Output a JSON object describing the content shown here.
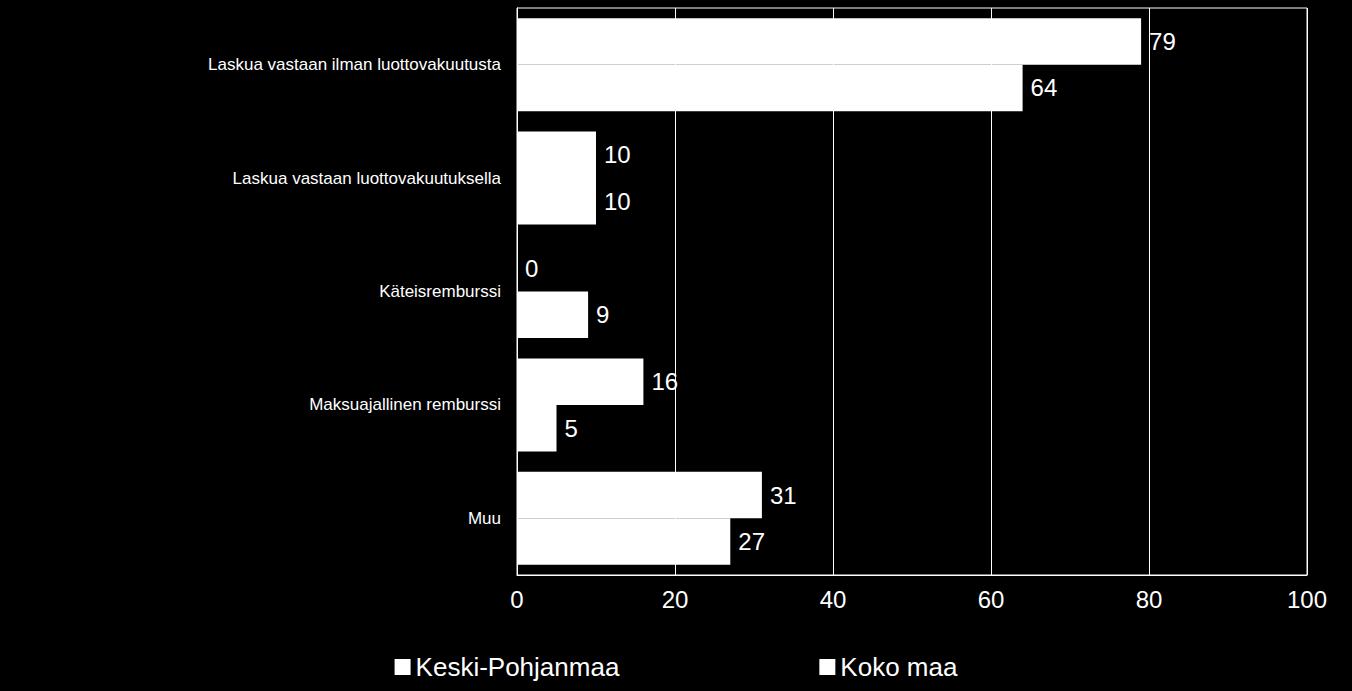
{
  "chart_data": {
    "type": "bar",
    "orientation": "horizontal",
    "categories": [
      "Laskua vastaan ilman luottovakuutusta",
      "Laskua vastaan luottovakuutuksella",
      "Käteisremburssi",
      "Maksuajallinen remburssi",
      "Muu"
    ],
    "series": [
      {
        "name": "Keski-Pohjanmaa",
        "color": "#ffffff",
        "values": [
          79,
          10,
          0,
          16,
          31
        ]
      },
      {
        "name": "Koko maa",
        "color": "#ffffff",
        "values": [
          64,
          10,
          9,
          5,
          27
        ]
      }
    ],
    "xlim": [
      0,
      100
    ],
    "xticks": [
      0,
      20,
      40,
      60,
      80,
      100
    ],
    "grid": true,
    "data_labels": true,
    "legend": "bottom"
  }
}
